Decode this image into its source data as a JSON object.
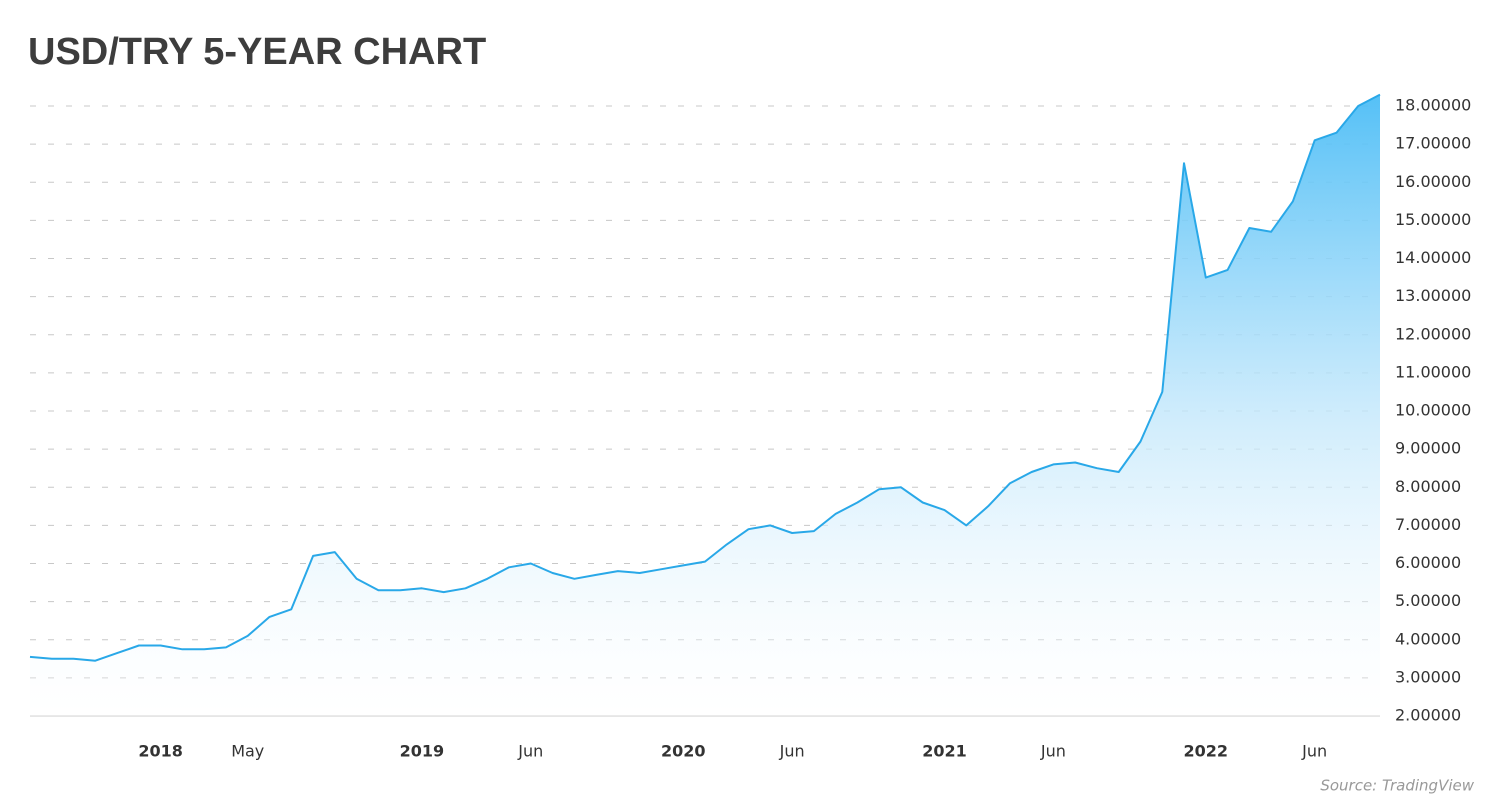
{
  "chart_data": {
    "type": "area",
    "title": "USD/TRY 5-YEAR CHART",
    "source": "Source: TradingView",
    "x": [
      "2017-07",
      "2017-08",
      "2017-09",
      "2017-10",
      "2017-11",
      "2017-12",
      "2018-01",
      "2018-02",
      "2018-03",
      "2018-04",
      "2018-05",
      "2018-06",
      "2018-07",
      "2018-08",
      "2018-09",
      "2018-10",
      "2018-11",
      "2018-12",
      "2019-01",
      "2019-02",
      "2019-03",
      "2019-04",
      "2019-05",
      "2019-06",
      "2019-07",
      "2019-08",
      "2019-09",
      "2019-10",
      "2019-11",
      "2019-12",
      "2020-01",
      "2020-02",
      "2020-03",
      "2020-04",
      "2020-05",
      "2020-06",
      "2020-07",
      "2020-08",
      "2020-09",
      "2020-10",
      "2020-11",
      "2020-12",
      "2021-01",
      "2021-02",
      "2021-03",
      "2021-04",
      "2021-05",
      "2021-06",
      "2021-07",
      "2021-08",
      "2021-09",
      "2021-10",
      "2021-11",
      "2021-12",
      "2022-01",
      "2022-02",
      "2022-03",
      "2022-04",
      "2022-05",
      "2022-06",
      "2022-07",
      "2022-08",
      "2022-09"
    ],
    "series": [
      {
        "name": "USD/TRY",
        "color": "#29a8e8",
        "values": [
          3.55,
          3.5,
          3.5,
          3.45,
          3.65,
          3.85,
          3.85,
          3.75,
          3.75,
          3.8,
          4.1,
          4.6,
          4.8,
          6.2,
          6.3,
          5.6,
          5.3,
          5.3,
          5.35,
          5.25,
          5.35,
          5.6,
          5.9,
          6.0,
          5.75,
          5.6,
          5.7,
          5.8,
          5.75,
          5.85,
          5.95,
          6.05,
          6.5,
          6.9,
          7.0,
          6.8,
          6.85,
          7.3,
          7.6,
          7.95,
          8.0,
          7.6,
          7.4,
          7.0,
          7.5,
          8.1,
          8.4,
          8.6,
          8.65,
          8.5,
          8.4,
          9.2,
          10.5,
          16.5,
          13.5,
          13.7,
          14.8,
          14.7,
          15.5,
          17.1,
          17.3,
          18.0,
          18.3
        ]
      }
    ],
    "xlim": [
      "2017-07",
      "2022-09"
    ],
    "xticks": [
      {
        "value": "2018-01",
        "label": "2018"
      },
      {
        "value": "2018-05",
        "label": "May"
      },
      {
        "value": "2019-01",
        "label": "2019"
      },
      {
        "value": "2019-06",
        "label": "Jun"
      },
      {
        "value": "2020-01",
        "label": "2020"
      },
      {
        "value": "2020-06",
        "label": "Jun"
      },
      {
        "value": "2021-01",
        "label": "2021"
      },
      {
        "value": "2021-06",
        "label": "Jun"
      },
      {
        "value": "2022-01",
        "label": "2022"
      },
      {
        "value": "2022-06",
        "label": "Jun"
      }
    ],
    "ylim": [
      2,
      18
    ],
    "yticks": [
      {
        "value": 2,
        "label": "2.00000"
      },
      {
        "value": 3,
        "label": "3.00000"
      },
      {
        "value": 4,
        "label": "4.00000"
      },
      {
        "value": 5,
        "label": "5.00000"
      },
      {
        "value": 6,
        "label": "6.00000"
      },
      {
        "value": 7,
        "label": "7.00000"
      },
      {
        "value": 8,
        "label": "8.00000"
      },
      {
        "value": 9,
        "label": "9.00000"
      },
      {
        "value": 10,
        "label": "10.00000"
      },
      {
        "value": 11,
        "label": "11.00000"
      },
      {
        "value": 12,
        "label": "12.00000"
      },
      {
        "value": 13,
        "label": "13.00000"
      },
      {
        "value": 14,
        "label": "14.00000"
      },
      {
        "value": 15,
        "label": "15.00000"
      },
      {
        "value": 16,
        "label": "16.00000"
      },
      {
        "value": 17,
        "label": "17.00000"
      },
      {
        "value": 18,
        "label": "18.00000"
      }
    ],
    "grid": true
  }
}
